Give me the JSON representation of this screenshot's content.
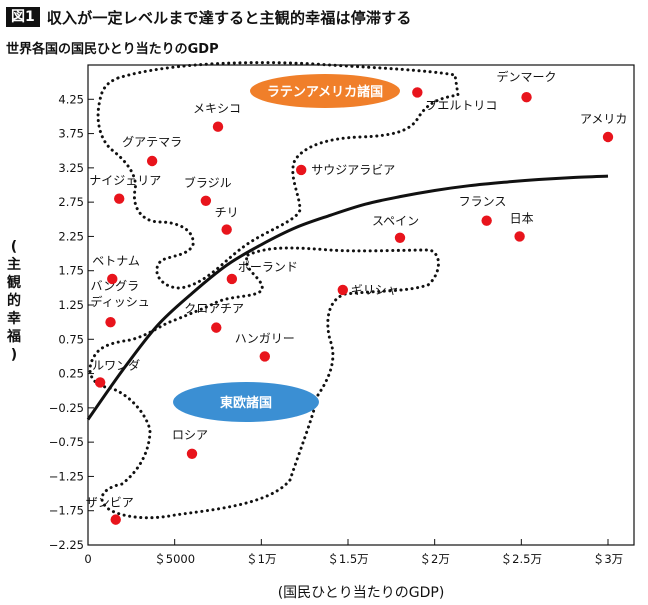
{
  "header": {
    "badge": "図1",
    "title": "収入が一定レベルまで達すると主観的幸福は停滞する"
  },
  "subtitle": "世界各国の国民ひとり当たりのGDP",
  "colors": {
    "point": "#e8141c",
    "latam_badge": "#f07f2a",
    "east_badge": "#3b8fd3",
    "curve": "#111111"
  },
  "chart_data": {
    "type": "scatter",
    "xlabel": "(国民ひとり当たりのGDP)",
    "ylabel": "(主観的幸福)",
    "xlim": [
      0,
      31500
    ],
    "ylim": [
      -2.25,
      4.75
    ],
    "x_ticks": [
      {
        "value": 0,
        "label": "0"
      },
      {
        "value": 5000,
        "label": "＄5000"
      },
      {
        "value": 10000,
        "label": "＄1万"
      },
      {
        "value": 15000,
        "label": "＄1.5万"
      },
      {
        "value": 20000,
        "label": "＄2万"
      },
      {
        "value": 25000,
        "label": "＄2.5万"
      },
      {
        "value": 30000,
        "label": "＄3万"
      }
    ],
    "y_ticks": [
      {
        "value": 4.25,
        "label": "4.25"
      },
      {
        "value": 3.75,
        "label": "3.75"
      },
      {
        "value": 3.25,
        "label": "3.25"
      },
      {
        "value": 2.75,
        "label": "2.75"
      },
      {
        "value": 2.25,
        "label": "2.25"
      },
      {
        "value": 1.75,
        "label": "1.75"
      },
      {
        "value": 1.25,
        "label": "1.25"
      },
      {
        "value": 0.75,
        "label": "0.75"
      },
      {
        "value": 0.25,
        "label": "0.25"
      },
      {
        "value": -0.25,
        "label": "−0.25"
      },
      {
        "value": -0.75,
        "label": "−0.75"
      },
      {
        "value": -1.25,
        "label": "−1.25"
      },
      {
        "value": -1.75,
        "label": "−1.75"
      },
      {
        "value": -2.25,
        "label": "−2.25"
      }
    ],
    "points": [
      {
        "name": "デンマーク",
        "x": 25300,
        "y": 4.28
      },
      {
        "name": "プエルトリコ",
        "x": 19000,
        "y": 4.35
      },
      {
        "name": "アメリカ",
        "x": 30000,
        "y": 3.7
      },
      {
        "name": "メキシコ",
        "x": 7500,
        "y": 3.85
      },
      {
        "name": "グアテマラ",
        "x": 3700,
        "y": 3.35
      },
      {
        "name": "サウジアラビア",
        "x": 12300,
        "y": 3.22
      },
      {
        "name": "ナイジェリア",
        "x": 1800,
        "y": 2.8
      },
      {
        "name": "ブラジル",
        "x": 6800,
        "y": 2.77
      },
      {
        "name": "チリ",
        "x": 8000,
        "y": 2.35
      },
      {
        "name": "フランス",
        "x": 23000,
        "y": 2.48
      },
      {
        "name": "日本",
        "x": 24900,
        "y": 2.25
      },
      {
        "name": "スペイン",
        "x": 18000,
        "y": 2.23
      },
      {
        "name": "ベトナム",
        "x": 1400,
        "y": 1.63
      },
      {
        "name": "ポーランド",
        "x": 8300,
        "y": 1.63
      },
      {
        "name": "ギリシャ",
        "x": 14700,
        "y": 1.47
      },
      {
        "name": "バングラディッシュ",
        "x": 1300,
        "y": 1.0
      },
      {
        "name": "クロアチア",
        "x": 7400,
        "y": 0.92
      },
      {
        "name": "ハンガリー",
        "x": 10200,
        "y": 0.5
      },
      {
        "name": "ルワンダ",
        "x": 700,
        "y": 0.12
      },
      {
        "name": "ロシア",
        "x": 6000,
        "y": -0.92
      },
      {
        "name": "ザンビア",
        "x": 1600,
        "y": -1.88
      }
    ],
    "trend_curve": [
      [
        0,
        -0.42
      ],
      [
        2000,
        0.3
      ],
      [
        4000,
        0.95
      ],
      [
        6000,
        1.42
      ],
      [
        8000,
        1.83
      ],
      [
        10000,
        2.13
      ],
      [
        12000,
        2.38
      ],
      [
        14000,
        2.56
      ],
      [
        16000,
        2.72
      ],
      [
        18000,
        2.83
      ],
      [
        20000,
        2.92
      ],
      [
        22000,
        2.99
      ],
      [
        24000,
        3.04
      ],
      [
        26000,
        3.08
      ],
      [
        28000,
        3.11
      ],
      [
        30000,
        3.13
      ]
    ],
    "groups": [
      {
        "name": "ラテンアメリカ諸国"
      },
      {
        "name": "東欧諸国"
      }
    ]
  }
}
